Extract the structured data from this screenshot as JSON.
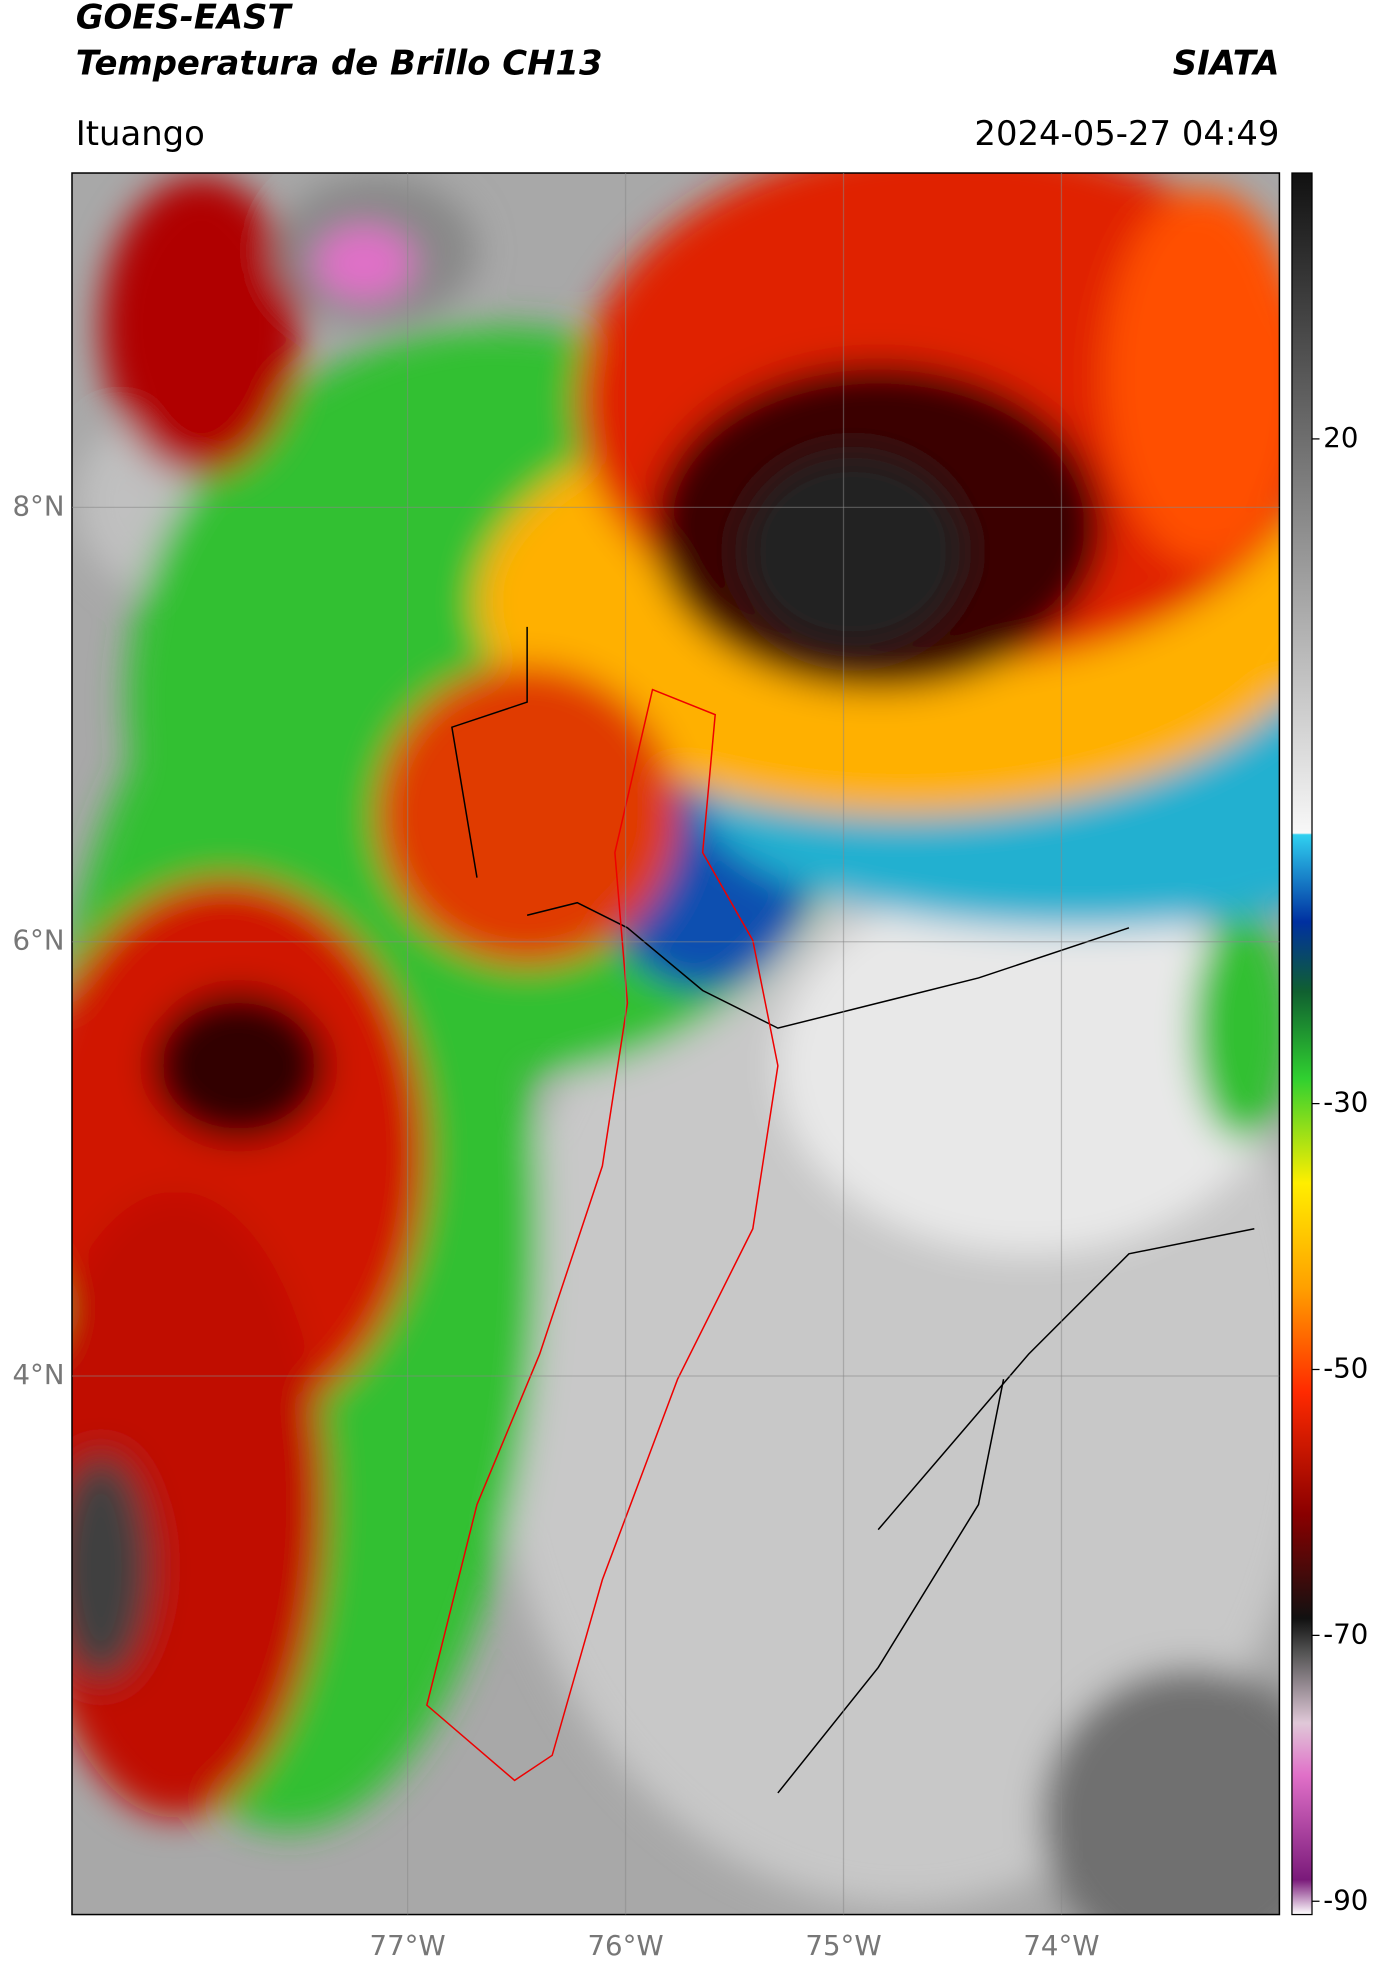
{
  "header": {
    "satellite": "GOES-EAST",
    "product": "Temperatura de Brillo CH13",
    "source": "SIATA",
    "location": "Ituango",
    "datetime": "2024-05-27 04:49"
  },
  "chart_data": {
    "type": "map",
    "xlim": [
      -78.54,
      -73.0
    ],
    "ylim": [
      1.52,
      9.54
    ],
    "xticks": [
      {
        "value": -77,
        "label": "77°W"
      },
      {
        "value": -76,
        "label": "76°W"
      },
      {
        "value": -75,
        "label": "75°W"
      },
      {
        "value": -74,
        "label": "74°W"
      }
    ],
    "yticks": [
      {
        "value": 8,
        "label": "8°N"
      },
      {
        "value": 6,
        "label": "6°N"
      },
      {
        "value": 4,
        "label": "4°N"
      }
    ],
    "grid": true,
    "colorbar": {
      "lim": [
        -91,
        40
      ],
      "ticks": [
        20,
        -30,
        -50,
        -70,
        -90
      ]
    }
  }
}
